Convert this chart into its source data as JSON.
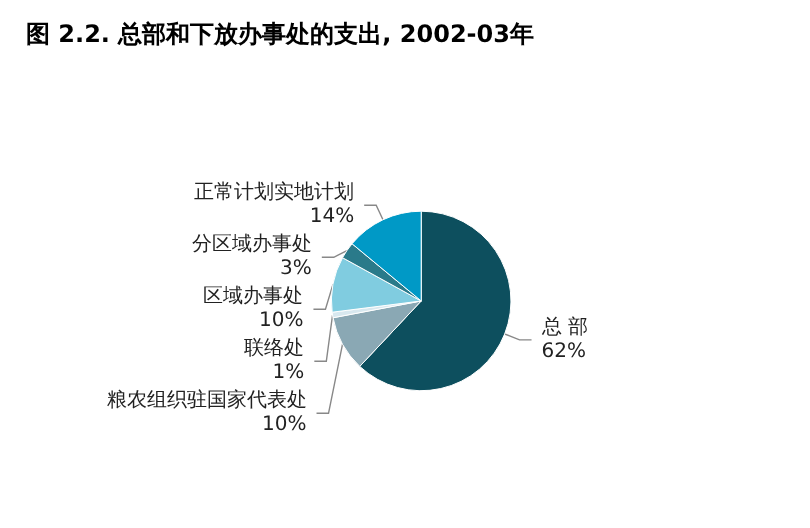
{
  "chart_data": {
    "type": "pie",
    "title": "图 2.2. 总部和下放办事处的支出, 2002-03年",
    "categories": [
      "总 部",
      "粮农组织驻国家代表处",
      "联络处",
      "区域办事处",
      "分区域办事处",
      "正常计划实地计划"
    ],
    "values": [
      62,
      10,
      1,
      10,
      3,
      14
    ],
    "colors": [
      "#0d4f5e",
      "#8aa8b4",
      "#d8e8ef",
      "#80cce0",
      "#2a7a8a",
      "#0099c6"
    ],
    "value_labels": [
      "62%",
      "10%",
      "1%",
      "10%",
      "3%",
      "14%"
    ],
    "legend": false
  }
}
